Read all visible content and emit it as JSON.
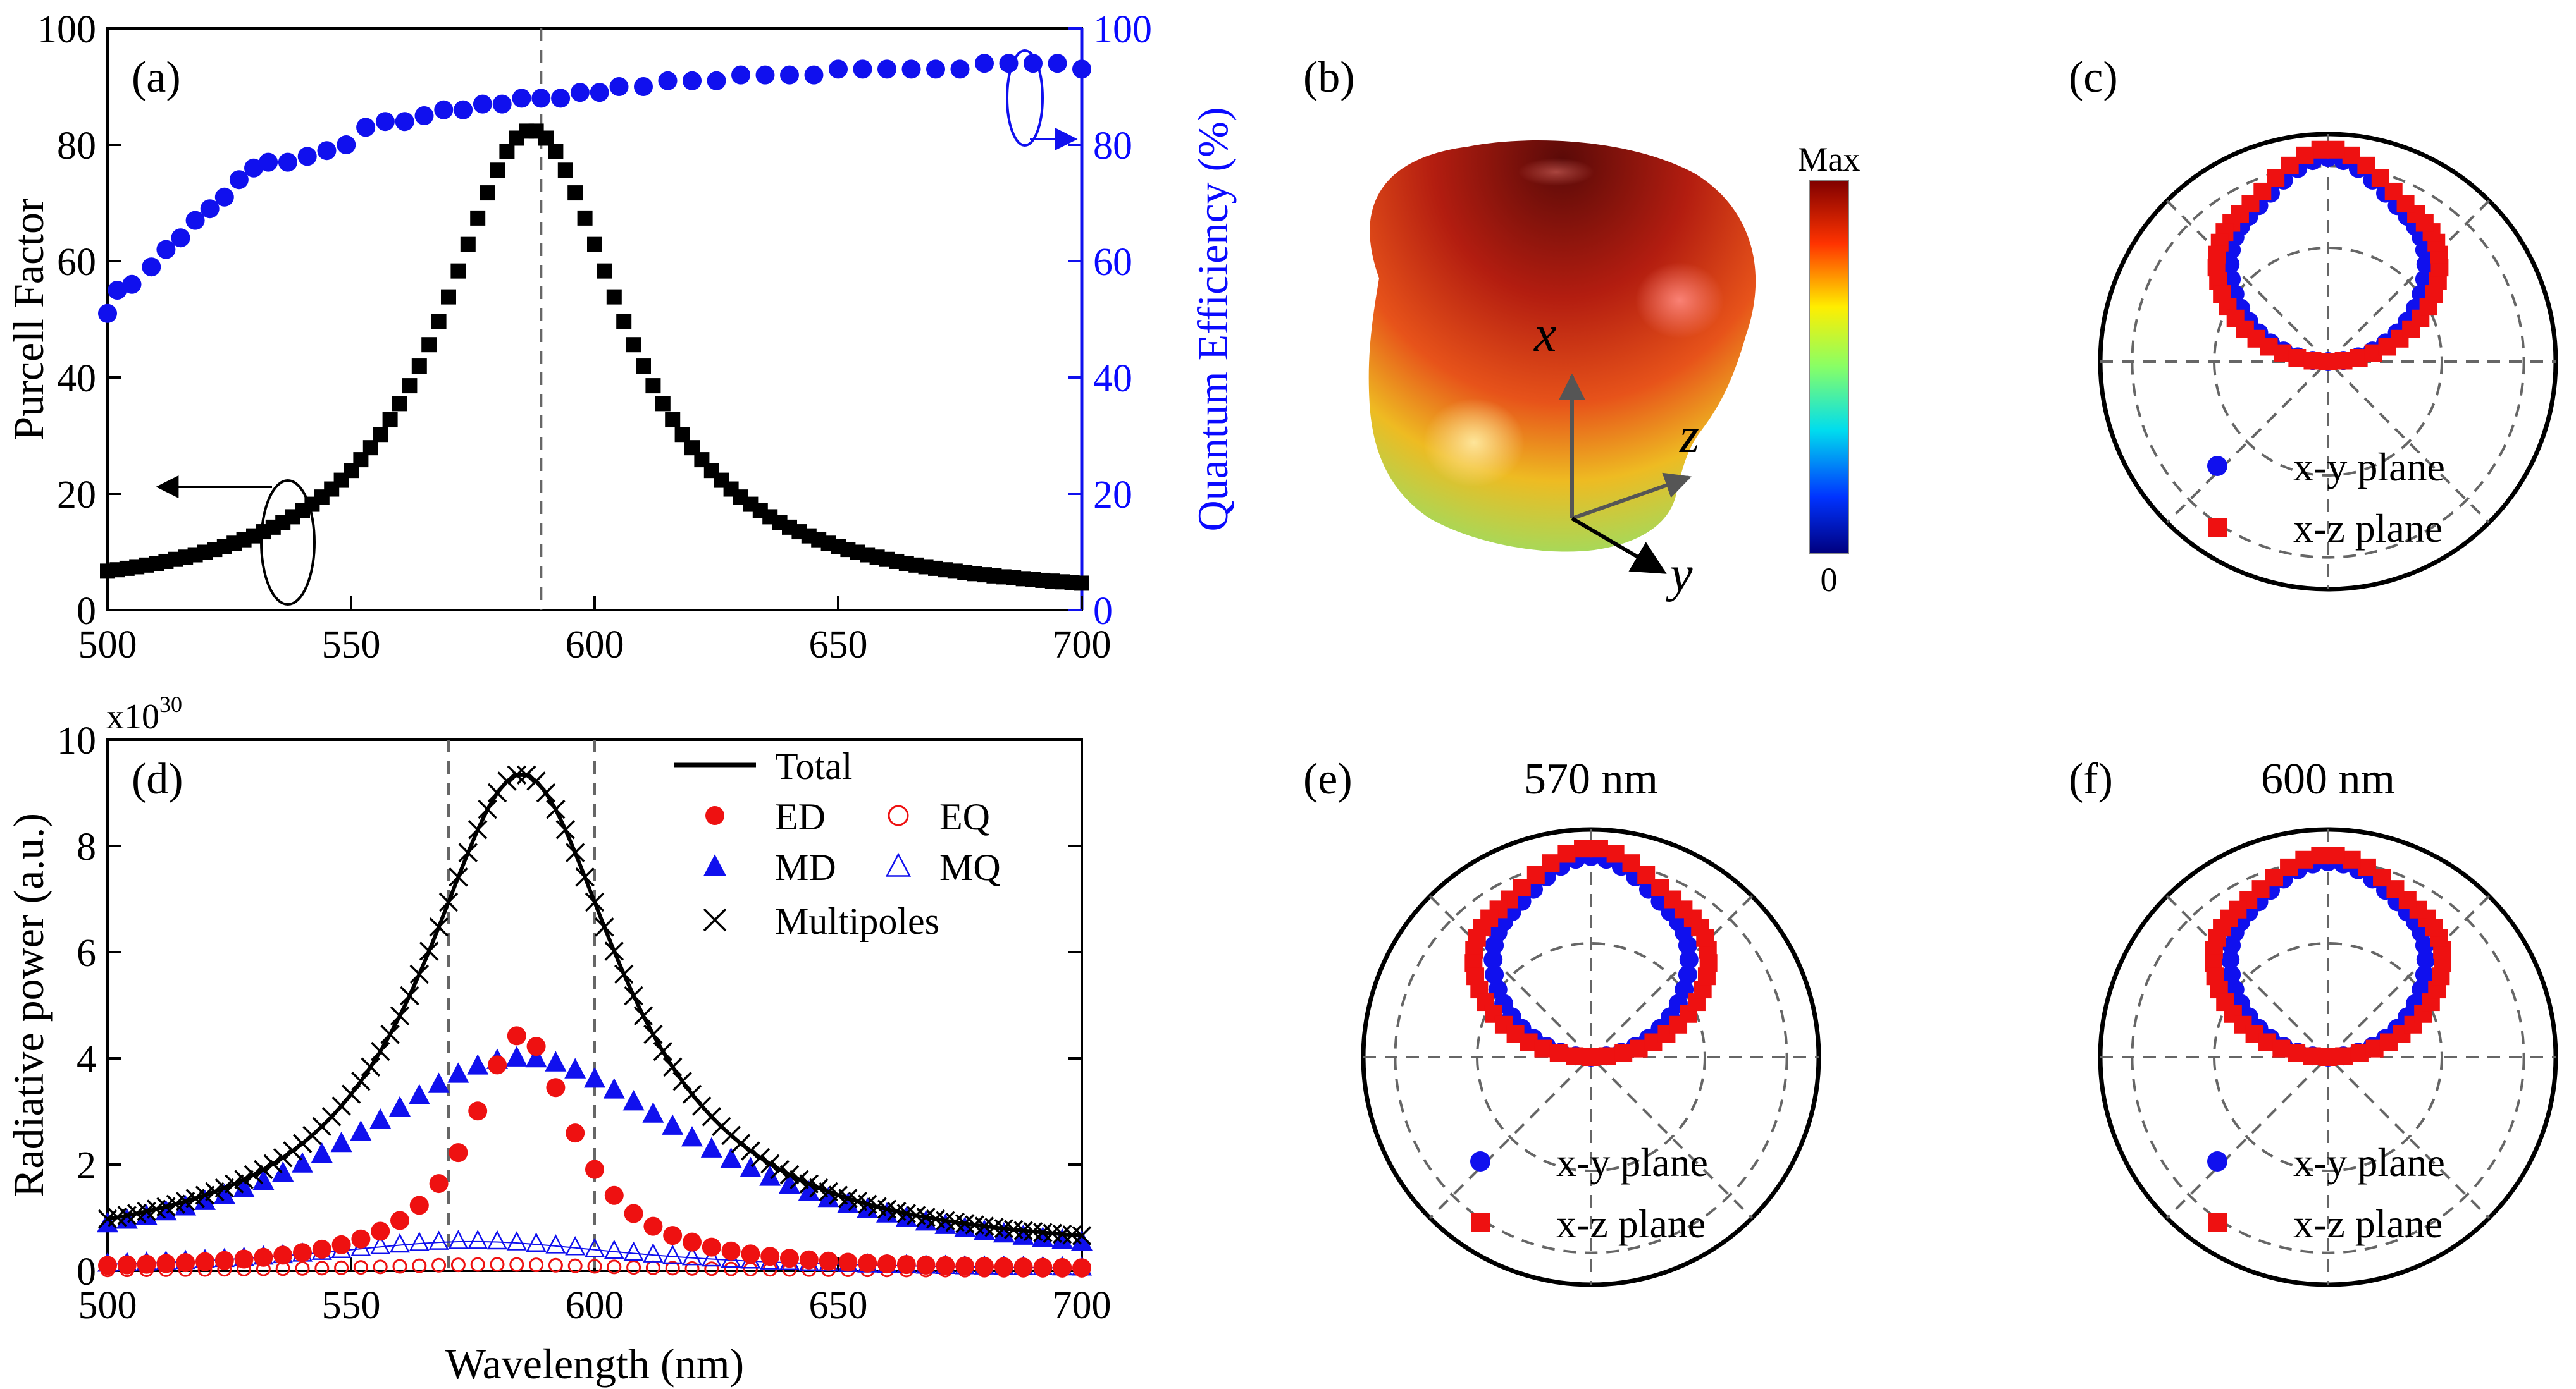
{
  "colors": {
    "black": "#000000",
    "blue": "#1010ee",
    "red": "#ee1111",
    "dash": "#666666"
  },
  "chart_data": [
    {
      "id": "a",
      "type": "scatter",
      "panel_label": "(a)",
      "xlim": [
        500,
        700
      ],
      "xticks": [
        500,
        550,
        600,
        650,
        700
      ],
      "ylim": [
        0,
        100
      ],
      "yticks": [
        0,
        20,
        40,
        60,
        80,
        100
      ],
      "y2lim": [
        0,
        100
      ],
      "y2ticks": [
        0,
        20,
        40,
        60,
        80,
        100
      ],
      "ylabel": "Purcell Factor",
      "y2label": "Quantum Efficiency (%)",
      "vline": 589,
      "series": [
        {
          "name": "Purcell Factor",
          "axis": "left",
          "marker": "square",
          "lorentz": {
            "x0": 587,
            "peak": 82.5,
            "gamma": 23.0,
            "base": 1.4,
            "from": 500,
            "to": 700,
            "step": 2
          }
        },
        {
          "name": "Quantum Efficiency",
          "axis": "right",
          "marker": "circle",
          "x": [
            500,
            502,
            505,
            509,
            512,
            515,
            518,
            521,
            524,
            527,
            530,
            533,
            537,
            541,
            545,
            549,
            553,
            557,
            561,
            565,
            569,
            573,
            577,
            581,
            585,
            589,
            593,
            597,
            601,
            605,
            610,
            615,
            620,
            625,
            630,
            635,
            640,
            645,
            650,
            655,
            660,
            665,
            670,
            675,
            680,
            685,
            690,
            695,
            700
          ],
          "y": [
            51,
            55,
            56,
            59,
            62,
            64,
            67,
            69,
            71,
            74,
            76,
            77,
            77,
            78,
            79,
            80,
            83,
            84,
            84,
            85,
            86,
            86,
            87,
            87,
            88,
            88,
            88,
            89,
            89,
            90,
            90,
            91,
            91,
            91,
            92,
            92,
            92,
            92,
            93,
            93,
            93,
            93,
            93,
            93,
            94,
            94,
            94,
            94,
            93
          ]
        }
      ]
    },
    {
      "id": "b",
      "type": "heatmap",
      "panel_label": "(b)",
      "colorbar": {
        "max_label": "Max",
        "min_label": "0"
      },
      "axes_labels": [
        "x",
        "z",
        "y"
      ]
    },
    {
      "id": "c",
      "type": "polar",
      "panel_label": "(c)",
      "title": "",
      "legend": [
        {
          "name": "x-y plane",
          "marker": "circle"
        },
        {
          "name": "x-z plane",
          "marker": "square"
        }
      ],
      "patterns": {
        "xy": {
          "bump": 0.05,
          "width": 1.0
        },
        "xz": {
          "bump": 0.1,
          "width": 1.14
        }
      }
    },
    {
      "id": "d",
      "type": "line",
      "panel_label": "(d)",
      "xlabel": "Wavelength (nm)",
      "ylabel": "Radiative power (a.u.)",
      "y_scale_label": "x10",
      "y_scale_exp": "30",
      "xlim": [
        500,
        700
      ],
      "xticks": [
        500,
        550,
        600,
        650,
        700
      ],
      "ylim": [
        0,
        10
      ],
      "yticks": [
        0,
        2,
        4,
        6,
        8,
        10
      ],
      "vlines": [
        570,
        600
      ],
      "legend": [
        {
          "name": "Total",
          "marker": "line"
        },
        {
          "name": "ED",
          "marker": "circle-filled"
        },
        {
          "name": "EQ",
          "marker": "circle-open"
        },
        {
          "name": "MD",
          "marker": "triangle-filled"
        },
        {
          "name": "MQ",
          "marker": "triangle-open"
        },
        {
          "name": "Multipoles",
          "marker": "cross"
        }
      ],
      "series": [
        {
          "name": "Total",
          "lorentz": {
            "x0": 585,
            "peak": 9.35,
            "gamma": 25,
            "base": 0.25,
            "from": 500,
            "to": 700,
            "step": 2
          }
        },
        {
          "name": "Multipoles",
          "lorentz": {
            "x0": 585,
            "peak": 9.35,
            "gamma": 25,
            "base": 0.25,
            "from": 500,
            "to": 700,
            "step": 2
          }
        },
        {
          "name": "ED",
          "lorentz": {
            "x0": 585,
            "peak": 4.45,
            "gamma": 13,
            "base": 0.0,
            "from": 500,
            "to": 700,
            "step": 4
          }
        },
        {
          "name": "MD",
          "lorentz": {
            "x0": 585,
            "peak": 4.0,
            "gamma": 45,
            "base": 0.0,
            "from": 500,
            "to": 700,
            "step": 4
          }
        },
        {
          "name": "MQ",
          "lorentz": {
            "x0": 575,
            "peak": 0.55,
            "gamma": 40,
            "base": 0.0,
            "from": 500,
            "to": 700,
            "step": 4
          }
        },
        {
          "name": "EQ",
          "lorentz": {
            "x0": 580,
            "peak": 0.12,
            "gamma": 30,
            "base": 0.0,
            "from": 500,
            "to": 700,
            "step": 4
          }
        }
      ]
    },
    {
      "id": "e",
      "type": "polar",
      "panel_label": "(e)",
      "title": "570 nm",
      "legend": [
        {
          "name": "x-y plane",
          "marker": "circle"
        },
        {
          "name": "x-z plane",
          "marker": "square"
        }
      ],
      "patterns": {
        "xy": {
          "bump": 0.03,
          "width": 1.0
        },
        "xz": {
          "bump": 0.08,
          "width": 1.2
        }
      }
    },
    {
      "id": "f",
      "type": "polar",
      "panel_label": "(f)",
      "title": "600 nm",
      "legend": [
        {
          "name": "x-y plane",
          "marker": "circle"
        },
        {
          "name": "x-z plane",
          "marker": "square"
        }
      ],
      "patterns": {
        "xy": {
          "bump": 0.0,
          "width": 1.0
        },
        "xz": {
          "bump": 0.04,
          "width": 1.17
        }
      }
    }
  ]
}
